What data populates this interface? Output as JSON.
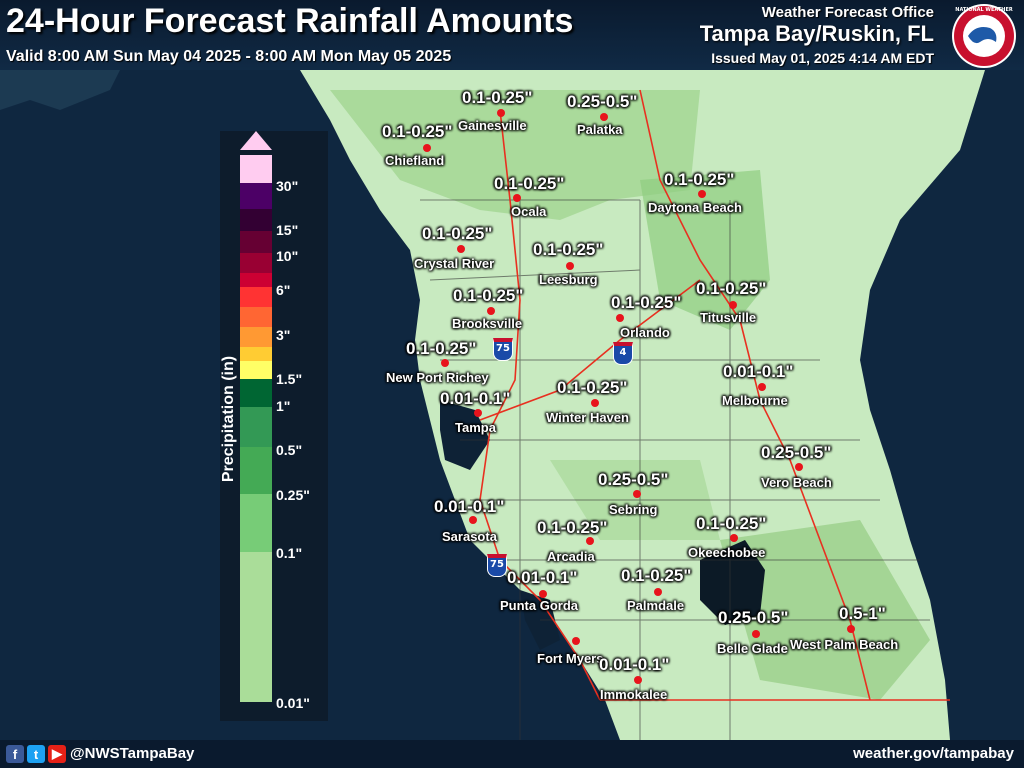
{
  "header": {
    "title": "24-Hour Forecast Rainfall Amounts",
    "valid": "Valid 8:00 AM Sun May 04 2025 - 8:00 AM Mon May 05 2025",
    "office_label": "Weather Forecast Office",
    "office": "Tampa Bay/Ruskin, FL",
    "issued": "Issued May 01, 2025 4:14 AM EDT",
    "logo_text": "NATIONAL WEATHER SERVICE"
  },
  "footer": {
    "handle": "@NWSTampaBay",
    "website": "weather.gov/tampabay"
  },
  "legend": {
    "title": "Precipitation (in)",
    "ticks": [
      "30\"",
      "15\"",
      "10\"",
      "6\"",
      "3\"",
      "1.5\"",
      "1\"",
      "0.5\"",
      "0.25\"",
      "0.1\"",
      "0.01\""
    ],
    "colors": [
      "#ffccf0",
      "#4c0066",
      "#330033",
      "#660033",
      "#990033",
      "#cc0033",
      "#ff3333",
      "#ff6633",
      "#ff9933",
      "#ffcc33",
      "#ffff66",
      "#006633",
      "#339955",
      "#44aa55",
      "#77cc77",
      "#aadd99",
      "#cceecc"
    ]
  },
  "highways": [
    "75",
    "75",
    "4"
  ],
  "cities": [
    {
      "name": "Gainesville",
      "amount": "0.1-0.25\""
    },
    {
      "name": "Palatka",
      "amount": "0.25-0.5\""
    },
    {
      "name": "Chiefland",
      "amount": "0.1-0.25\""
    },
    {
      "name": "Ocala",
      "amount": "0.1-0.25\""
    },
    {
      "name": "Daytona Beach",
      "amount": "0.1-0.25\""
    },
    {
      "name": "Crystal River",
      "amount": "0.1-0.25\""
    },
    {
      "name": "Leesburg",
      "amount": "0.1-0.25\""
    },
    {
      "name": "Brooksville",
      "amount": "0.1-0.25\""
    },
    {
      "name": "Orlando",
      "amount": "0.1-0.25\""
    },
    {
      "name": "Titusville",
      "amount": "0.1-0.25\""
    },
    {
      "name": "New Port Richey",
      "amount": "0.1-0.25\""
    },
    {
      "name": "Tampa",
      "amount": "0.01-0.1\""
    },
    {
      "name": "Winter Haven",
      "amount": "0.1-0.25\""
    },
    {
      "name": "Melbourne",
      "amount": "0.01-0.1\""
    },
    {
      "name": "Vero Beach",
      "amount": "0.25-0.5\""
    },
    {
      "name": "Sebring",
      "amount": "0.25-0.5\""
    },
    {
      "name": "Sarasota",
      "amount": "0.01-0.1\""
    },
    {
      "name": "Arcadia",
      "amount": "0.1-0.25\""
    },
    {
      "name": "Okeechobee",
      "amount": "0.1-0.25\""
    },
    {
      "name": "Punta Gorda",
      "amount": "0.01-0.1\""
    },
    {
      "name": "Palmdale",
      "amount": "0.1-0.25\""
    },
    {
      "name": "Belle Glade",
      "amount": "0.25-0.5\""
    },
    {
      "name": "West Palm Beach",
      "amount": "0.5-1\""
    },
    {
      "name": "Fort Myers",
      "amount": ""
    },
    {
      "name": "Immokalee",
      "amount": "0.01-0.1\""
    }
  ]
}
